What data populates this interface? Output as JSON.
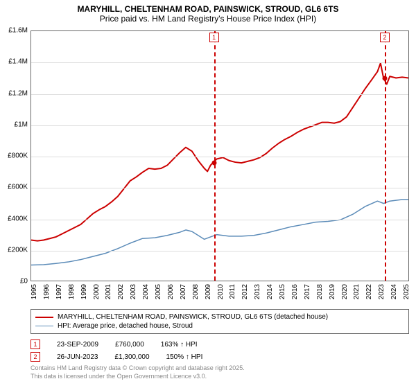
{
  "title": {
    "line1": "MARYHILL, CHELTENHAM ROAD, PAINSWICK, STROUD, GL6 6TS",
    "line2": "Price paid vs. HM Land Registry's House Price Index (HPI)",
    "fontsize_main": 12,
    "fontsize_sub": 12
  },
  "chart": {
    "type": "line",
    "background_color": "#ffffff",
    "grid_color": "#dddddd",
    "border_color": "#666666",
    "x": {
      "min": 1995,
      "max": 2025.5,
      "ticks": [
        1995,
        1996,
        1997,
        1998,
        1999,
        2000,
        2001,
        2002,
        2003,
        2004,
        2005,
        2006,
        2007,
        2008,
        2009,
        2010,
        2011,
        2012,
        2013,
        2014,
        2015,
        2016,
        2017,
        2018,
        2019,
        2020,
        2021,
        2022,
        2023,
        2024,
        2025
      ],
      "label_fontsize": 10
    },
    "y": {
      "min": 0,
      "max": 1600000,
      "ticks": [
        {
          "v": 0,
          "label": "£0"
        },
        {
          "v": 200000,
          "label": "£200K"
        },
        {
          "v": 400000,
          "label": "£400K"
        },
        {
          "v": 600000,
          "label": "£600K"
        },
        {
          "v": 800000,
          "label": "£800K"
        },
        {
          "v": 1000000,
          "label": "£1M"
        },
        {
          "v": 1200000,
          "label": "£1.2M"
        },
        {
          "v": 1400000,
          "label": "£1.4M"
        },
        {
          "v": 1600000,
          "label": "£1.6M"
        }
      ],
      "label_fontsize": 10
    },
    "series": [
      {
        "name": "price_paid",
        "color": "#cc0000",
        "width": 2,
        "label": "MARYHILL, CHELTENHAM ROAD, PAINSWICK, STROUD, GL6 6TS (detached house)",
        "points": [
          [
            1995,
            260000
          ],
          [
            1995.5,
            255000
          ],
          [
            1996,
            260000
          ],
          [
            1996.5,
            270000
          ],
          [
            1997,
            280000
          ],
          [
            1997.5,
            300000
          ],
          [
            1998,
            320000
          ],
          [
            1998.5,
            340000
          ],
          [
            1999,
            360000
          ],
          [
            1999.5,
            395000
          ],
          [
            2000,
            430000
          ],
          [
            2000.5,
            455000
          ],
          [
            2001,
            475000
          ],
          [
            2001.5,
            505000
          ],
          [
            2002,
            540000
          ],
          [
            2002.5,
            590000
          ],
          [
            2003,
            640000
          ],
          [
            2003.5,
            665000
          ],
          [
            2004,
            695000
          ],
          [
            2004.5,
            720000
          ],
          [
            2005,
            715000
          ],
          [
            2005.5,
            720000
          ],
          [
            2006,
            740000
          ],
          [
            2006.5,
            780000
          ],
          [
            2007,
            820000
          ],
          [
            2007.5,
            855000
          ],
          [
            2008,
            830000
          ],
          [
            2008.5,
            770000
          ],
          [
            2009,
            720000
          ],
          [
            2009.25,
            700000
          ],
          [
            2009.5,
            740000
          ],
          [
            2009.73,
            760000
          ],
          [
            2010,
            780000
          ],
          [
            2010.5,
            790000
          ],
          [
            2011,
            770000
          ],
          [
            2011.5,
            760000
          ],
          [
            2012,
            755000
          ],
          [
            2012.5,
            765000
          ],
          [
            2013,
            775000
          ],
          [
            2013.5,
            790000
          ],
          [
            2014,
            815000
          ],
          [
            2014.5,
            850000
          ],
          [
            2015,
            880000
          ],
          [
            2015.5,
            905000
          ],
          [
            2016,
            925000
          ],
          [
            2016.5,
            950000
          ],
          [
            2017,
            970000
          ],
          [
            2017.5,
            985000
          ],
          [
            2018,
            1000000
          ],
          [
            2018.5,
            1015000
          ],
          [
            2019,
            1015000
          ],
          [
            2019.5,
            1010000
          ],
          [
            2020,
            1020000
          ],
          [
            2020.5,
            1050000
          ],
          [
            2021,
            1110000
          ],
          [
            2021.5,
            1170000
          ],
          [
            2022,
            1230000
          ],
          [
            2022.5,
            1285000
          ],
          [
            2023,
            1340000
          ],
          [
            2023.25,
            1395000
          ],
          [
            2023.49,
            1300000
          ],
          [
            2023.75,
            1260000
          ],
          [
            2024,
            1310000
          ],
          [
            2024.5,
            1300000
          ],
          [
            2025,
            1305000
          ],
          [
            2025.5,
            1300000
          ]
        ]
      },
      {
        "name": "hpi",
        "color": "#5b8bb8",
        "width": 1.5,
        "label": "HPI: Average price, detached house, Stroud",
        "points": [
          [
            1995,
            100000
          ],
          [
            1996,
            102000
          ],
          [
            1997,
            110000
          ],
          [
            1998,
            120000
          ],
          [
            1999,
            135000
          ],
          [
            2000,
            155000
          ],
          [
            2001,
            175000
          ],
          [
            2002,
            205000
          ],
          [
            2003,
            240000
          ],
          [
            2004,
            270000
          ],
          [
            2005,
            275000
          ],
          [
            2006,
            290000
          ],
          [
            2007,
            310000
          ],
          [
            2007.5,
            325000
          ],
          [
            2008,
            315000
          ],
          [
            2008.5,
            290000
          ],
          [
            2009,
            265000
          ],
          [
            2009.5,
            280000
          ],
          [
            2010,
            295000
          ],
          [
            2011,
            285000
          ],
          [
            2012,
            285000
          ],
          [
            2013,
            290000
          ],
          [
            2014,
            305000
          ],
          [
            2015,
            325000
          ],
          [
            2016,
            345000
          ],
          [
            2017,
            360000
          ],
          [
            2018,
            375000
          ],
          [
            2019,
            380000
          ],
          [
            2020,
            390000
          ],
          [
            2021,
            425000
          ],
          [
            2022,
            475000
          ],
          [
            2023,
            510000
          ],
          [
            2023.5,
            495000
          ],
          [
            2024,
            510000
          ],
          [
            2025,
            520000
          ],
          [
            2025.5,
            520000
          ]
        ]
      }
    ],
    "markers": [
      {
        "id": "1",
        "x": 2009.73,
        "y": 760000,
        "color": "#cc0000",
        "date": "23-SEP-2009",
        "price": "£760,000",
        "pct": "163% ↑ HPI"
      },
      {
        "id": "2",
        "x": 2023.49,
        "y": 1300000,
        "color": "#cc0000",
        "date": "26-JUN-2023",
        "price": "£1,300,000",
        "pct": "150% ↑ HPI"
      }
    ],
    "vline_color": "#cc0000"
  },
  "legend": {
    "items": [
      {
        "color": "#cc0000",
        "width": 2,
        "text": "MARYHILL, CHELTENHAM ROAD, PAINSWICK, STROUD, GL6 6TS (detached house)"
      },
      {
        "color": "#5b8bb8",
        "width": 1.5,
        "text": "HPI: Average price, detached house, Stroud"
      }
    ]
  },
  "footer": {
    "line1": "Contains HM Land Registry data © Crown copyright and database right 2025.",
    "line2": "This data is licensed under the Open Government Licence v3.0."
  }
}
